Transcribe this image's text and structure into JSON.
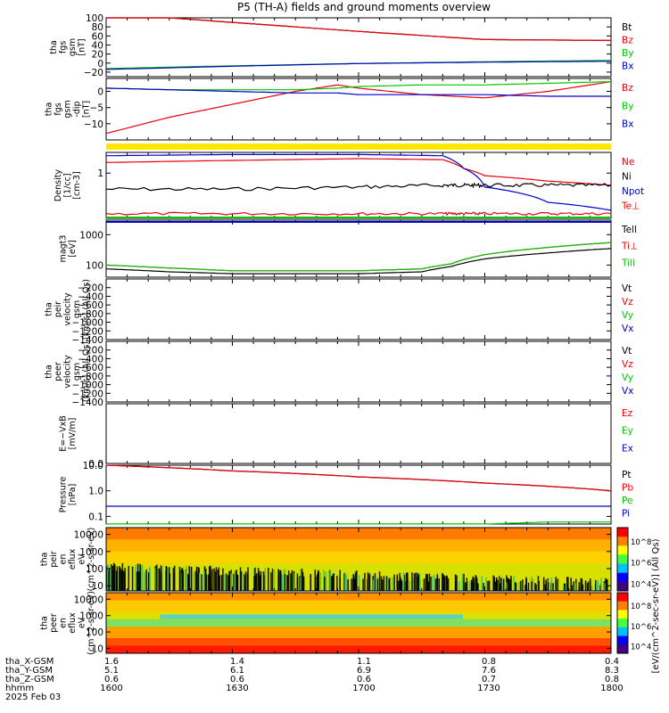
{
  "title": "P5 (TH-A) fields and ground moments overview",
  "footer": {
    "row_labels": [
      "tha_X-GSM",
      "tha_Y-GSM",
      "tha_Z-GSM",
      "hhmm",
      "2025 Feb 03"
    ],
    "columns": [
      {
        "x": "1.6",
        "y": "5.1",
        "z": "0.6",
        "hhmm": "1600"
      },
      {
        "x": "1.4",
        "y": "6.1",
        "z": "0.6",
        "hhmm": "1630"
      },
      {
        "x": "1.1",
        "y": "6.9",
        "z": "0.6",
        "hhmm": "1700"
      },
      {
        "x": "0.8",
        "y": "7.6",
        "z": "0.7",
        "hhmm": "1730"
      },
      {
        "x": "0.4",
        "y": "8.3",
        "z": "0.8",
        "hhmm": "1800"
      }
    ]
  },
  "colorbar": {
    "label": "[eV/(cm^2-sec-sr-eV)] (All Qs)",
    "ticks_top": [
      "10^8",
      "10^6",
      "10^4"
    ],
    "ticks_bottom": [
      "10^8",
      "10^6",
      "10^4"
    ]
  },
  "chart_data": [
    {
      "id": "fgs_gsm",
      "type": "line",
      "ylabel": [
        "tha",
        "fgs",
        "gsm",
        "[nT]"
      ],
      "ylim": [
        -30,
        100
      ],
      "yticks": [
        {
          "v": 100,
          "label": "100"
        },
        {
          "v": 80,
          "label": "80"
        },
        {
          "v": 60,
          "label": "60"
        },
        {
          "v": 40,
          "label": "40"
        },
        {
          "v": 20,
          "label": "20"
        },
        {
          "v": 0,
          "label": "0"
        },
        {
          "v": -20,
          "label": "−20"
        }
      ],
      "x": [
        1600,
        1630,
        1700,
        1730,
        1800
      ],
      "series": [
        {
          "name": "Bt",
          "color": "#000000",
          "values": [
            110,
            90,
            70,
            52,
            50
          ]
        },
        {
          "name": "Bz",
          "color": "#e8000b",
          "values": [
            110,
            90,
            70,
            52,
            50
          ]
        },
        {
          "name": "By",
          "color": "#00c800",
          "values": [
            -12,
            -6,
            -1,
            3,
            6
          ]
        },
        {
          "name": "Bx",
          "color": "#0000c8",
          "values": [
            -14,
            -7,
            -1,
            2,
            4
          ]
        }
      ]
    },
    {
      "id": "fgs_gsm_dip",
      "type": "line",
      "ylabel": [
        "tha",
        "fgs",
        "gsm",
        "-dip",
        "[nT]"
      ],
      "ylim": [
        -15,
        4
      ],
      "yticks": [
        {
          "v": 0,
          "label": "0"
        },
        {
          "v": -5,
          "label": "−5"
        },
        {
          "v": -10,
          "label": "−10"
        }
      ],
      "x": [
        1600,
        1615,
        1630,
        1645,
        1655,
        1700,
        1715,
        1730,
        1745,
        1800
      ],
      "series": [
        {
          "name": "Bz",
          "color": "#e8000b",
          "values": [
            -13,
            -8,
            -4,
            0,
            2,
            1,
            -1,
            -2,
            0,
            3
          ]
        },
        {
          "name": "By",
          "color": "#00c800",
          "values": [
            1,
            0.5,
            0.5,
            0.5,
            1,
            1.5,
            2,
            2,
            2.5,
            3
          ]
        },
        {
          "name": "Bx",
          "color": "#0000c8",
          "values": [
            1,
            0.5,
            0,
            -0.5,
            -0.5,
            -1,
            -1,
            -1,
            -1.5,
            -1.5
          ]
        }
      ]
    },
    {
      "id": "density",
      "type": "line",
      "scale": "log",
      "ylabel": [
        "Density",
        "[1/cc]",
        "[cm-3]"
      ],
      "ylim": [
        0.02,
        6
      ],
      "yticks": [
        {
          "v": 1,
          "label": "1"
        }
      ],
      "x": [
        1600,
        1630,
        1700,
        1720,
        1725,
        1730,
        1745,
        1800
      ],
      "series": [
        {
          "name": "Ne",
          "color": "#e8000b",
          "values": [
            2.5,
            3,
            3.5,
            3.2,
            1.5,
            0.8,
            0.5,
            0.35
          ]
        },
        {
          "name": "Ni",
          "color": "#000000",
          "values": [
            0.25,
            0.25,
            0.3,
            0.35,
            0.35,
            0.35,
            0.35,
            0.35
          ]
        },
        {
          "name": "Npot",
          "color": "#0000c8",
          "values": [
            4.5,
            5,
            5,
            4.5,
            1.5,
            0.3,
            0.08,
            0.04
          ]
        },
        {
          "name": "Te⊥",
          "color": "#e8000b",
          "values": [
            0.03,
            0.03,
            0.03,
            0.03,
            0.03,
            0.03,
            0.03,
            0.03
          ]
        }
      ]
    },
    {
      "id": "temperature",
      "type": "line",
      "scale": "log",
      "ylabel": [
        "magt3",
        "[eV]"
      ],
      "ylim": [
        40,
        3000
      ],
      "yticks": [
        {
          "v": 1000,
          "label": "1000"
        },
        {
          "v": 100,
          "label": "100"
        }
      ],
      "x": [
        1600,
        1615,
        1630,
        1700,
        1715,
        1722,
        1730,
        1745,
        1800
      ],
      "series": [
        {
          "name": "Tell",
          "color": "#000000",
          "values": [
            75,
            60,
            52,
            52,
            60,
            90,
            160,
            250,
            350
          ]
        },
        {
          "name": "Ti⊥",
          "color": "#e8000b",
          "values": [
            100,
            80,
            65,
            65,
            75,
            110,
            220,
            380,
            550
          ]
        },
        {
          "name": "Till",
          "color": "#00c800",
          "values": [
            100,
            80,
            65,
            65,
            75,
            110,
            220,
            380,
            550
          ]
        }
      ]
    },
    {
      "id": "peir_velocity",
      "type": "line",
      "ylabel": [
        "tha",
        "peir",
        "velocity",
        "gsm",
        "[km/s] (All Qs)"
      ],
      "ylim": [
        -1400,
        0
      ],
      "yticks": [
        {
          "v": -200,
          "label": "−200"
        },
        {
          "v": -400,
          "label": "−400"
        },
        {
          "v": -600,
          "label": "−600"
        },
        {
          "v": -800,
          "label": "−800"
        },
        {
          "v": -1000,
          "label": "−1000"
        },
        {
          "v": -1200,
          "label": "−1200"
        },
        {
          "v": -1400,
          "label": "−1400"
        }
      ],
      "series": [
        {
          "name": "Vt",
          "color": "#000000",
          "values": []
        },
        {
          "name": "Vz",
          "color": "#e8000b",
          "values": []
        },
        {
          "name": "Vy",
          "color": "#00c800",
          "values": []
        },
        {
          "name": "Vx",
          "color": "#0000c8",
          "values": []
        }
      ]
    },
    {
      "id": "peer_velocity",
      "type": "line",
      "ylabel": [
        "tha",
        "peer",
        "velocity",
        "gsm",
        "[km/s] (All Qs)"
      ],
      "ylim": [
        -1400,
        0
      ],
      "yticks": [
        {
          "v": -200,
          "label": "−200"
        },
        {
          "v": -400,
          "label": "−400"
        },
        {
          "v": -600,
          "label": "−600"
        },
        {
          "v": -800,
          "label": "−800"
        },
        {
          "v": -1000,
          "label": "−1000"
        },
        {
          "v": -1200,
          "label": "−1200"
        },
        {
          "v": -1400,
          "label": "−1400"
        }
      ],
      "series": [
        {
          "name": "Vt",
          "color": "#000000",
          "values": []
        },
        {
          "name": "Vz",
          "color": "#e8000b",
          "values": []
        },
        {
          "name": "Vy",
          "color": "#00c800",
          "values": []
        },
        {
          "name": "Vx",
          "color": "#0000c8",
          "values": []
        }
      ]
    },
    {
      "id": "efield",
      "type": "line",
      "ylabel": [
        "E=−VxB",
        "[mV/m]"
      ],
      "ylim": [
        0,
        10
      ],
      "yticks": [
        {
          "v": 0,
          "label": "0.0"
        }
      ],
      "series": [
        {
          "name": "Ez",
          "color": "#e8000b",
          "values": []
        },
        {
          "name": "Ey",
          "color": "#00c800",
          "values": []
        },
        {
          "name": "Ex",
          "color": "#0000c8",
          "values": []
        }
      ]
    },
    {
      "id": "pressure",
      "type": "line",
      "scale": "log",
      "ylabel": [
        "Pressure",
        "[nPa]"
      ],
      "ylim": [
        0.05,
        10
      ],
      "yticks": [
        {
          "v": 10,
          "label": "10.0"
        },
        {
          "v": 1,
          "label": "1.0"
        },
        {
          "v": 0.1,
          "label": "0.1"
        }
      ],
      "x": [
        1600,
        1630,
        1700,
        1730,
        1745,
        1800
      ],
      "series": [
        {
          "name": "Pt",
          "color": "#000000",
          "values": [
            10,
            6,
            3.5,
            2,
            1.5,
            1
          ]
        },
        {
          "name": "Pb",
          "color": "#e8000b",
          "values": [
            10,
            6,
            3.5,
            2,
            1.5,
            1
          ]
        },
        {
          "name": "Pe",
          "color": "#00c800",
          "values": [
            0.05,
            0.05,
            0.05,
            0.05,
            0.06,
            0.06
          ]
        },
        {
          "name": "Pi",
          "color": "#0000c8",
          "values": [
            0.25,
            0.25,
            0.25,
            0.25,
            0.25,
            0.25
          ]
        }
      ]
    },
    {
      "id": "peir_eflux",
      "type": "heatmap",
      "scale": "log",
      "ylabel": [
        "tha",
        "peir",
        "en",
        "eflux",
        "eV",
        "(cm^2-s-sr-eV)"
      ],
      "ylim": [
        5,
        25000
      ],
      "yticks": [
        {
          "v": 10000,
          "label": "10000"
        },
        {
          "v": 1000,
          "label": "1000"
        },
        {
          "v": 100,
          "label": "100"
        },
        {
          "v": 10,
          "label": "10"
        }
      ]
    },
    {
      "id": "peer_eflux",
      "type": "heatmap",
      "scale": "log",
      "ylabel": [
        "tha",
        "peer",
        "en",
        "eflux",
        "eV",
        "(cm^2-s-sr-eV)"
      ],
      "ylim": [
        5,
        25000
      ],
      "yticks": [
        {
          "v": 10000,
          "label": "10000"
        },
        {
          "v": 1000,
          "label": "1000"
        },
        {
          "v": 100,
          "label": "100"
        },
        {
          "v": 10,
          "label": "10"
        }
      ]
    }
  ]
}
